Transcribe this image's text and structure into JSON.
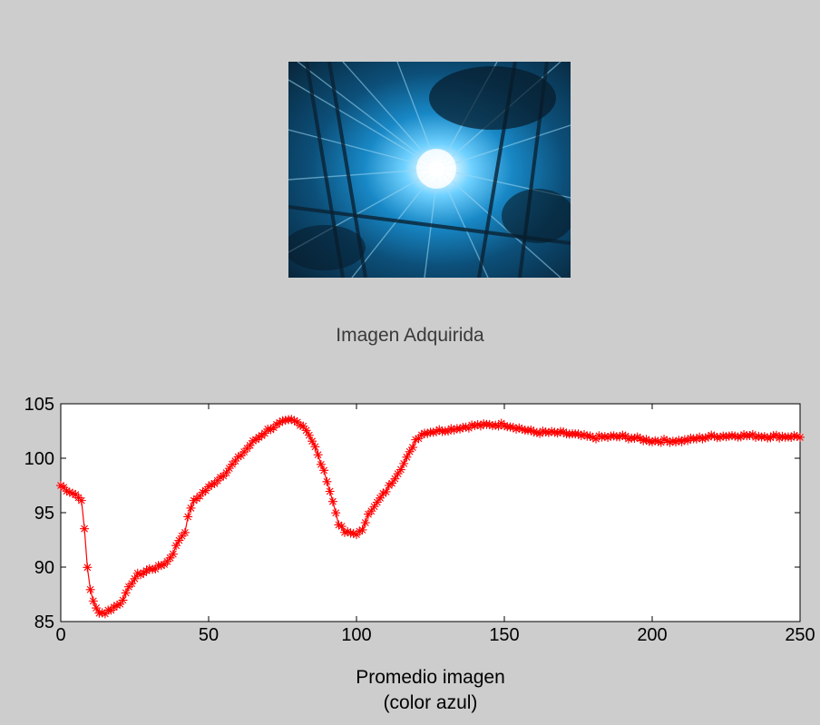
{
  "image_panel": {
    "caption": "Imagen Adquirida",
    "colors": {
      "deep": "#0b2d45",
      "mid": "#0f6fa6",
      "glow": "#7fd8ff",
      "core": "#ffffff"
    }
  },
  "chart_data": {
    "type": "line",
    "title": "",
    "xlabel": "Promedio imagen",
    "xlabel_line2": "(color azul)",
    "ylabel": "",
    "xlim": [
      0,
      250
    ],
    "ylim": [
      85,
      105
    ],
    "xticks": [
      0,
      50,
      100,
      150,
      200,
      250
    ],
    "yticks": [
      85,
      90,
      95,
      100,
      105
    ],
    "grid": false,
    "marker": "*",
    "color": "#ff0000",
    "series": [
      {
        "anchors_x": [
          0,
          2,
          4,
          6,
          7,
          8,
          9,
          10,
          11,
          12,
          13,
          14,
          15,
          16,
          18,
          20,
          22,
          24,
          26,
          28,
          30,
          33,
          36,
          38,
          40,
          42,
          43,
          44,
          45,
          47,
          50,
          55,
          60,
          65,
          70,
          75,
          78,
          80,
          82,
          84,
          86,
          88,
          90,
          92,
          94,
          96,
          98,
          100,
          102,
          104,
          106,
          108,
          110,
          112,
          114,
          116,
          118,
          120,
          122,
          124,
          130,
          140,
          150,
          160,
          170,
          180,
          190,
          200,
          210,
          220,
          230,
          240,
          250
        ],
        "anchors_y": [
          97.5,
          97.1,
          96.8,
          96.5,
          96.0,
          93.5,
          90.0,
          88.0,
          86.8,
          86.2,
          85.9,
          85.8,
          85.8,
          86.0,
          86.3,
          86.7,
          87.5,
          88.6,
          89.3,
          89.5,
          89.8,
          90.0,
          90.5,
          91.3,
          92.5,
          93.3,
          94.5,
          95.5,
          96.0,
          96.6,
          97.3,
          98.5,
          100.0,
          101.5,
          102.6,
          103.3,
          103.5,
          103.3,
          103.0,
          102.2,
          101.0,
          99.5,
          98.0,
          96.0,
          94.0,
          93.2,
          93.1,
          93.1,
          93.3,
          95.0,
          95.5,
          96.3,
          97.0,
          97.8,
          98.7,
          99.5,
          100.5,
          101.7,
          102.2,
          102.4,
          102.6,
          103.0,
          103.1,
          102.4,
          102.3,
          101.9,
          102.0,
          101.6,
          101.6,
          102.0,
          102.1,
          102.0,
          102.0
        ],
        "n_samples": 251,
        "jitter": 0.15
      }
    ]
  }
}
